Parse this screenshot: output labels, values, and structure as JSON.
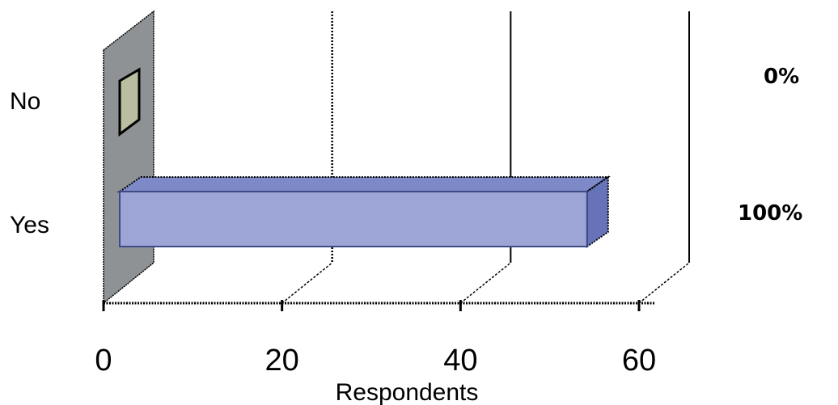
{
  "chart_data": {
    "type": "bar",
    "orientation": "horizontal",
    "three_d": true,
    "categories": [
      "No",
      "Yes"
    ],
    "values": [
      0,
      54
    ],
    "data_labels": [
      "0%",
      "100%"
    ],
    "xlabel": "Respondents",
    "xlim": [
      0,
      60
    ],
    "xticks": [
      0,
      20,
      40,
      60
    ],
    "grid": true,
    "colors": {
      "bar_front": "#9DA5D6",
      "bar_top": "#7E89C8",
      "bar_side": "#6673B8",
      "bar_edge": "#3D4A8A",
      "wall": "#8E9294",
      "zero_marker": "#B9BEA0"
    }
  }
}
